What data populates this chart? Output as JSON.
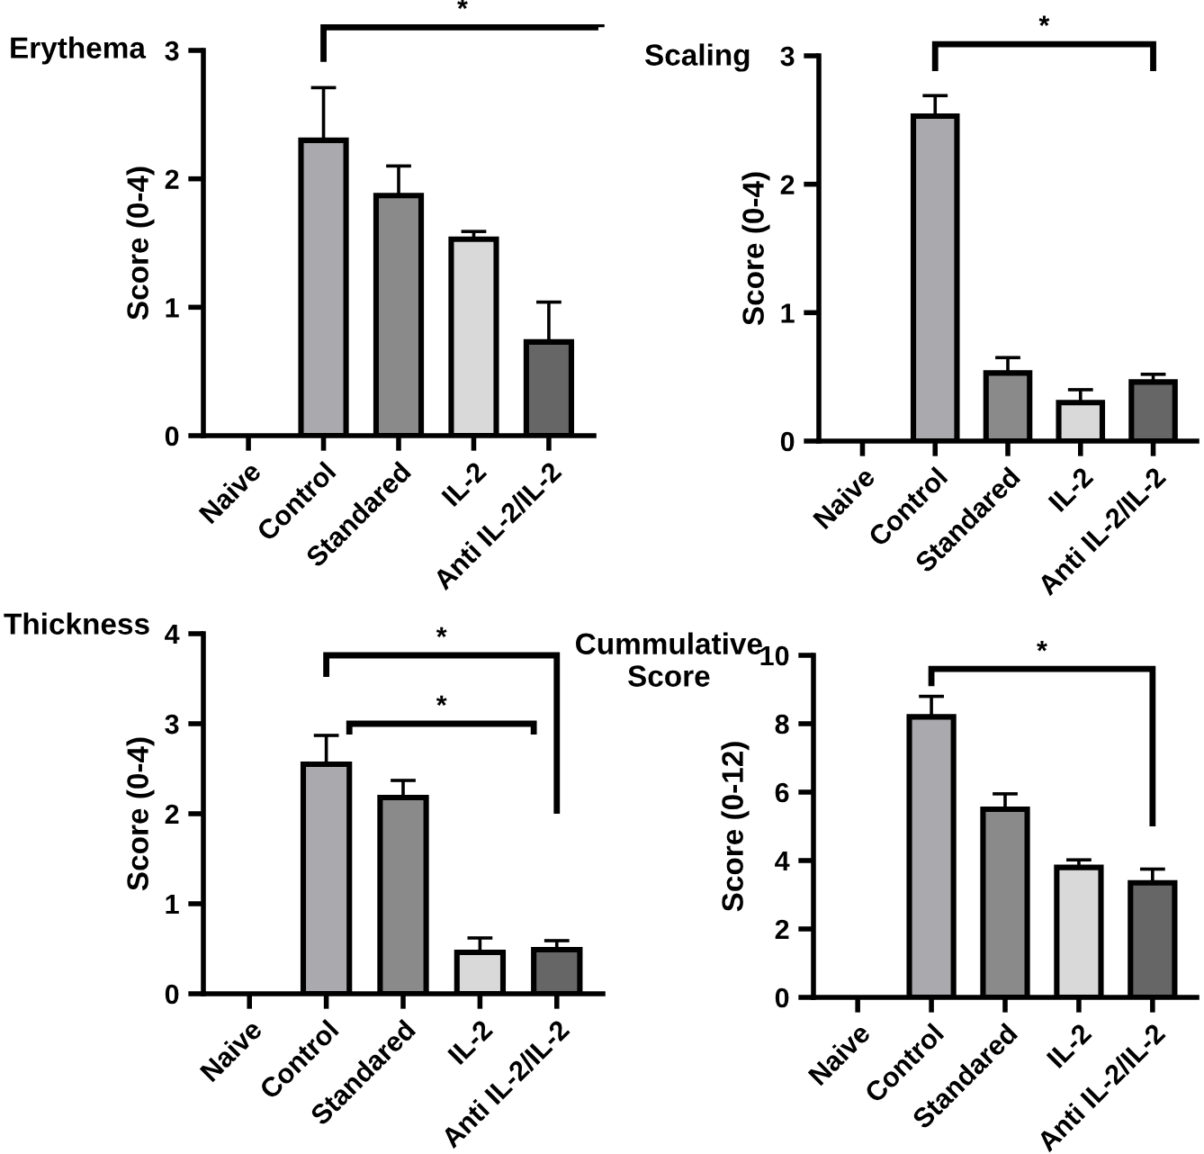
{
  "chart_data": [
    {
      "type": "bar",
      "title": "Erythema",
      "ylabel": "Score (0-4)",
      "categories": [
        "Naive",
        "Control",
        "Standared",
        "IL-2",
        "Anti IL-2/IL-2"
      ],
      "values": [
        null,
        2.3,
        1.87,
        1.53,
        0.73
      ],
      "errors": [
        null,
        0.41,
        0.23,
        0.06,
        0.31
      ],
      "colors": [
        null,
        "#a9a9ae",
        "#8a8a8a",
        "#d9d9d9",
        "#666666"
      ],
      "ylim": [
        0,
        3
      ],
      "yticks": [
        0,
        1,
        2,
        3
      ],
      "grid": false,
      "legend": false,
      "annotations": [
        "*"
      ]
    },
    {
      "type": "bar",
      "title": "Scaling",
      "ylabel": "Score (0-4)",
      "categories": [
        "Naive",
        "Control",
        "Standared",
        "IL-2",
        "Anti IL-2/IL-2"
      ],
      "values": [
        null,
        2.53,
        0.53,
        0.3,
        0.46
      ],
      "errors": [
        null,
        0.16,
        0.12,
        0.1,
        0.06
      ],
      "colors": [
        null,
        "#a9a9ae",
        "#8a8a8a",
        "#d9d9d9",
        "#666666"
      ],
      "ylim": [
        0,
        3
      ],
      "yticks": [
        0,
        1,
        2,
        3
      ],
      "grid": false,
      "legend": false,
      "annotations": [
        "*"
      ]
    },
    {
      "type": "bar",
      "title": "Thickness",
      "ylabel": "Score (0-4)",
      "categories": [
        "Naive",
        "Control",
        "Standared",
        "IL-2",
        "Anti IL-2/IL-2"
      ],
      "values": [
        null,
        2.55,
        2.18,
        0.46,
        0.49
      ],
      "errors": [
        null,
        0.32,
        0.19,
        0.16,
        0.1
      ],
      "colors": [
        null,
        "#a9a9ae",
        "#8a8a8a",
        "#d9d9d9",
        "#666666"
      ],
      "ylim": [
        0,
        4
      ],
      "yticks": [
        0,
        1,
        2,
        3,
        4
      ],
      "grid": false,
      "legend": false,
      "annotations": [
        "*",
        "*"
      ]
    },
    {
      "type": "bar",
      "title": "Cummulative\nScore",
      "ylabel": "Score (0-12)",
      "categories": [
        "Naive",
        "Control",
        "Standared",
        "IL-2",
        "Anti IL-2/IL-2"
      ],
      "values": [
        null,
        8.2,
        5.5,
        3.8,
        3.35
      ],
      "errors": [
        null,
        0.6,
        0.45,
        0.22,
        0.4
      ],
      "colors": [
        null,
        "#a9a9ae",
        "#8a8a8a",
        "#d9d9d9",
        "#666666"
      ],
      "ylim": [
        0,
        10
      ],
      "yticks": [
        0,
        2,
        4,
        6,
        8,
        10
      ],
      "grid": false,
      "legend": false,
      "annotations": [
        "*"
      ]
    }
  ]
}
